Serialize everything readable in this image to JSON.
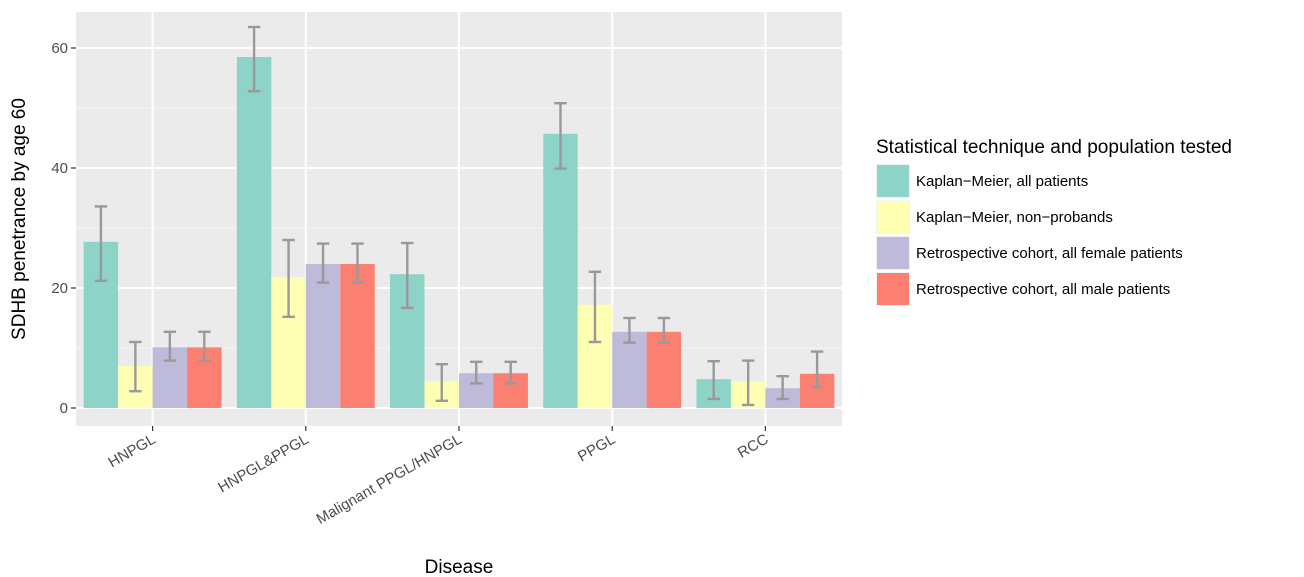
{
  "chart_data": {
    "type": "bar",
    "xlabel": "Disease",
    "ylabel": "SDHB penetrance by age 60",
    "ylim": [
      -3,
      66
    ],
    "yticks": [
      0,
      20,
      40,
      60
    ],
    "categories": [
      "HNPGL",
      "HNPGL&PPGL",
      "Malignant PPGL/HNPGL",
      "PPGL",
      "RCC"
    ],
    "legend_title": "Statistical technique and population tested",
    "legend_position": "right",
    "grid": true,
    "series": [
      {
        "name": "Kaplan−Meier, all patients",
        "color": "#8dd3c7",
        "values": [
          27.7,
          58.5,
          22.3,
          45.7,
          4.8
        ],
        "err_low": [
          21.2,
          52.8,
          16.7,
          39.9,
          1.5
        ],
        "err_high": [
          33.6,
          63.5,
          27.5,
          50.8,
          7.8
        ]
      },
      {
        "name": "Kaplan−Meier, non−probands",
        "color": "#ffffb3",
        "values": [
          7.0,
          21.8,
          4.4,
          17.2,
          4.4
        ],
        "err_low": [
          2.8,
          15.2,
          1.2,
          11.0,
          0.5
        ],
        "err_high": [
          11.0,
          28.0,
          7.3,
          22.7,
          7.9
        ]
      },
      {
        "name": "Retrospective cohort, all female patients",
        "color": "#bebada",
        "values": [
          10.1,
          24.0,
          5.8,
          12.7,
          3.3
        ],
        "err_low": [
          7.9,
          20.9,
          4.1,
          10.9,
          1.5
        ],
        "err_high": [
          12.7,
          27.4,
          7.7,
          15.0,
          5.3
        ]
      },
      {
        "name": "Retrospective cohort, all male patients",
        "color": "#fb8072",
        "values": [
          10.1,
          24.0,
          5.8,
          12.7,
          5.7
        ],
        "err_low": [
          7.9,
          20.9,
          4.1,
          10.9,
          3.5
        ],
        "err_high": [
          12.7,
          27.4,
          7.7,
          15.0,
          9.4
        ]
      }
    ]
  }
}
